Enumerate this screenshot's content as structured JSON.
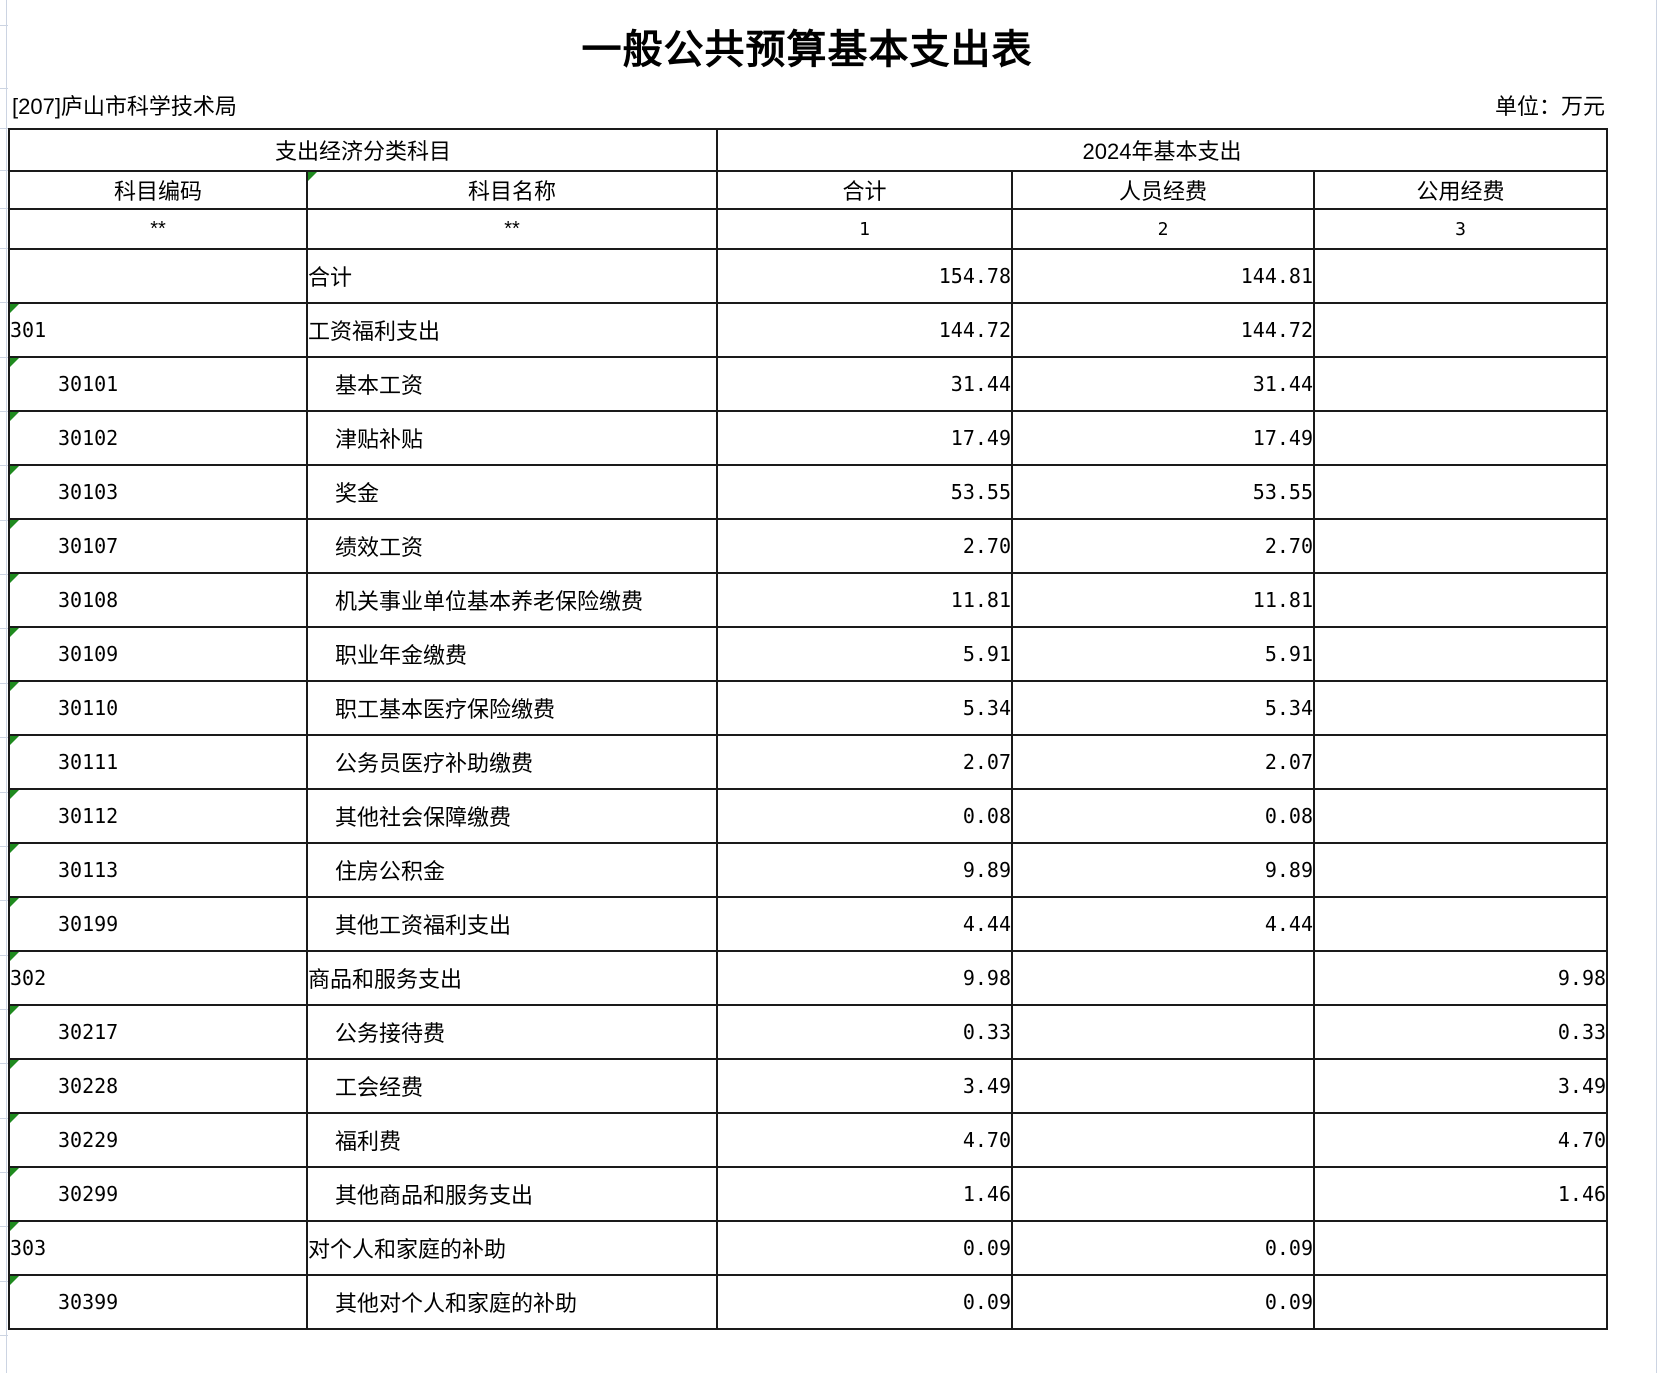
{
  "title": "一般公共预算基本支出表",
  "org": "[207]庐山市科学技术局",
  "unit_label": "单位：万元",
  "header": {
    "group_left": "支出经济分类科目",
    "group_right": "2024年基本支出",
    "col_code": "科目编码",
    "col_name": "科目名称",
    "col_total": "合计",
    "col_personnel": "人员经费",
    "col_public": "公用经费",
    "mask_code": "**",
    "mask_name": "**",
    "idx_total": "1",
    "idx_personnel": "2",
    "idx_public": "3"
  },
  "rows": [
    {
      "code": "",
      "name": "合计",
      "indent": 0,
      "total": "154.78",
      "personnel": "144.81",
      "public": "",
      "marker": false
    },
    {
      "code": "301",
      "name": "工资福利支出",
      "indent": 0,
      "total": "144.72",
      "personnel": "144.72",
      "public": "",
      "marker": true
    },
    {
      "code": "30101",
      "name": "基本工资",
      "indent": 1,
      "total": "31.44",
      "personnel": "31.44",
      "public": "",
      "marker": true
    },
    {
      "code": "30102",
      "name": "津贴补贴",
      "indent": 1,
      "total": "17.49",
      "personnel": "17.49",
      "public": "",
      "marker": true
    },
    {
      "code": "30103",
      "name": "奖金",
      "indent": 1,
      "total": "53.55",
      "personnel": "53.55",
      "public": "",
      "marker": true
    },
    {
      "code": "30107",
      "name": "绩效工资",
      "indent": 1,
      "total": "2.70",
      "personnel": "2.70",
      "public": "",
      "marker": true
    },
    {
      "code": "30108",
      "name": "机关事业单位基本养老保险缴费",
      "indent": 1,
      "total": "11.81",
      "personnel": "11.81",
      "public": "",
      "marker": true
    },
    {
      "code": "30109",
      "name": "职业年金缴费",
      "indent": 1,
      "total": "5.91",
      "personnel": "5.91",
      "public": "",
      "marker": true
    },
    {
      "code": "30110",
      "name": "职工基本医疗保险缴费",
      "indent": 1,
      "total": "5.34",
      "personnel": "5.34",
      "public": "",
      "marker": true
    },
    {
      "code": "30111",
      "name": "公务员医疗补助缴费",
      "indent": 1,
      "total": "2.07",
      "personnel": "2.07",
      "public": "",
      "marker": true
    },
    {
      "code": "30112",
      "name": "其他社会保障缴费",
      "indent": 1,
      "total": "0.08",
      "personnel": "0.08",
      "public": "",
      "marker": true
    },
    {
      "code": "30113",
      "name": "住房公积金",
      "indent": 1,
      "total": "9.89",
      "personnel": "9.89",
      "public": "",
      "marker": true
    },
    {
      "code": "30199",
      "name": "其他工资福利支出",
      "indent": 1,
      "total": "4.44",
      "personnel": "4.44",
      "public": "",
      "marker": true
    },
    {
      "code": "302",
      "name": "商品和服务支出",
      "indent": 0,
      "total": "9.98",
      "personnel": "",
      "public": "9.98",
      "marker": true
    },
    {
      "code": "30217",
      "name": "公务接待费",
      "indent": 1,
      "total": "0.33",
      "personnel": "",
      "public": "0.33",
      "marker": true
    },
    {
      "code": "30228",
      "name": "工会经费",
      "indent": 1,
      "total": "3.49",
      "personnel": "",
      "public": "3.49",
      "marker": true
    },
    {
      "code": "30229",
      "name": "福利费",
      "indent": 1,
      "total": "4.70",
      "personnel": "",
      "public": "4.70",
      "marker": true
    },
    {
      "code": "30299",
      "name": "其他商品和服务支出",
      "indent": 1,
      "total": "1.46",
      "personnel": "",
      "public": "1.46",
      "marker": true
    },
    {
      "code": "303",
      "name": "对个人和家庭的补助",
      "indent": 0,
      "total": "0.09",
      "personnel": "0.09",
      "public": "",
      "marker": true
    },
    {
      "code": "30399",
      "name": "其他对个人和家庭的补助",
      "indent": 1,
      "total": "0.09",
      "personnel": "0.09",
      "public": "",
      "marker": true
    }
  ],
  "first_data_row_public_value": "9.98",
  "colors": {
    "flag_green": "#1f8a1f",
    "grid_line": "#ccd4e2",
    "table_border": "#1a1a1a",
    "text": "#000000",
    "background": "#ffffff"
  }
}
